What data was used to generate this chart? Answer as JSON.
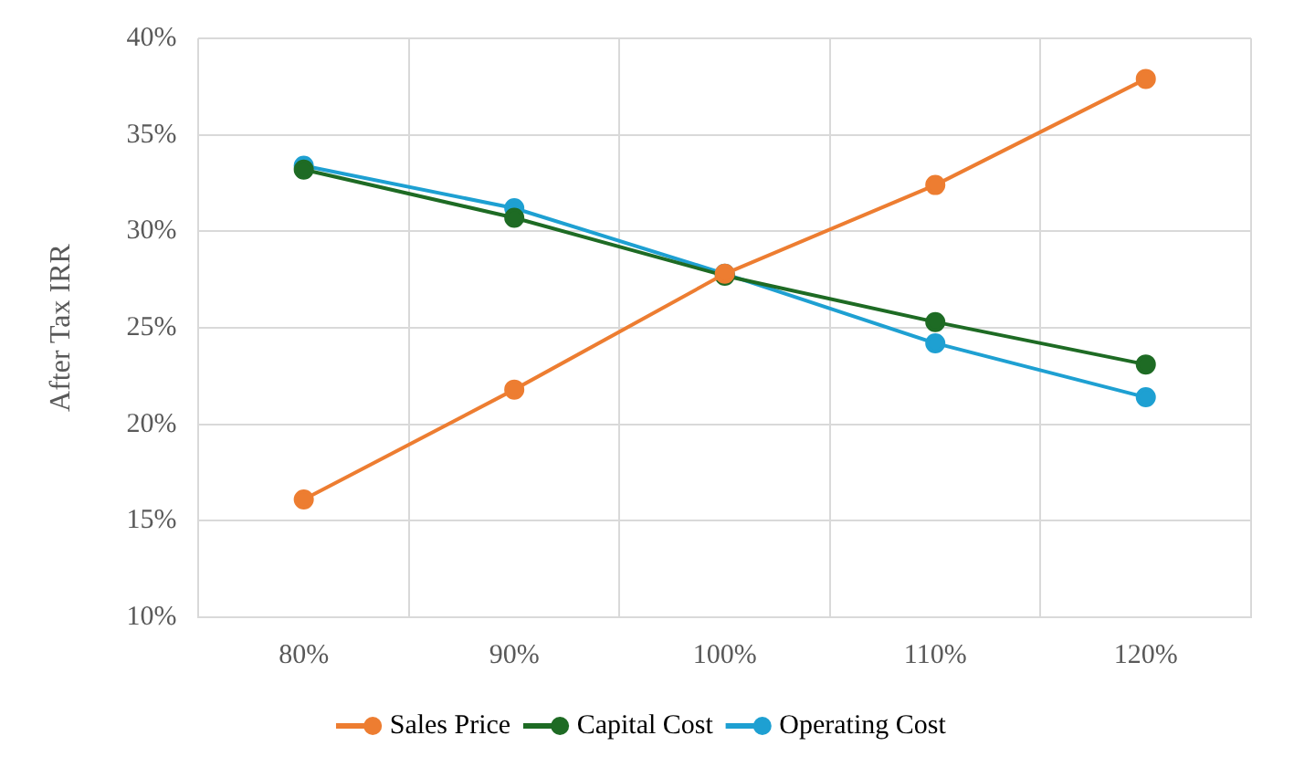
{
  "chart_data": {
    "type": "line",
    "ylabel": "After Tax IRR",
    "categories": [
      "80%",
      "90%",
      "100%",
      "110%",
      "120%"
    ],
    "series": [
      {
        "name": "Sales Price",
        "color": "#ed7d31",
        "values": [
          16.1,
          21.8,
          27.8,
          32.4,
          37.9
        ]
      },
      {
        "name": "Capital Cost",
        "color": "#1e6b24",
        "values": [
          33.2,
          30.7,
          27.7,
          25.3,
          23.1
        ]
      },
      {
        "name": "Operating Cost",
        "color": "#1ea0d2",
        "values": [
          33.4,
          31.2,
          27.8,
          24.2,
          21.4
        ]
      }
    ],
    "ylim": [
      10,
      40
    ],
    "yticks": [
      {
        "value": 10,
        "label": "10%"
      },
      {
        "value": 15,
        "label": "15%"
      },
      {
        "value": 20,
        "label": "20%"
      },
      {
        "value": 25,
        "label": "25%"
      },
      {
        "value": 30,
        "label": "30%"
      },
      {
        "value": 35,
        "label": "35%"
      },
      {
        "value": 40,
        "label": "40%"
      }
    ],
    "grid": true,
    "legend": "bottom",
    "marker": "circle",
    "line_style": "solid"
  }
}
